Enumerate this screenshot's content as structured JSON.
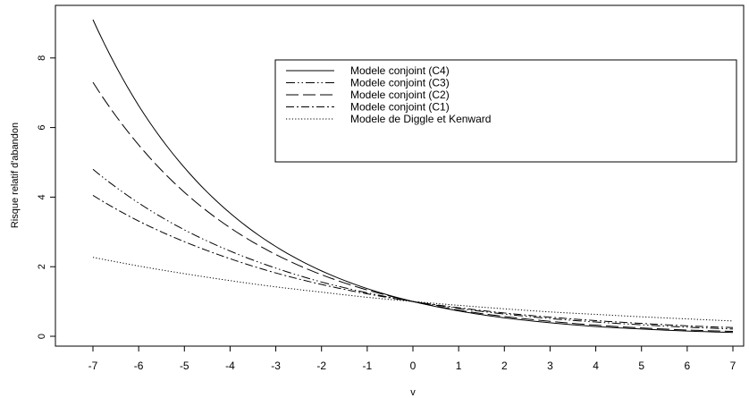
{
  "chart_data": {
    "type": "line",
    "title": "",
    "xlabel": "v",
    "ylabel": "Risque relatif d'abandon",
    "xlim": [
      -7,
      7
    ],
    "ylim": [
      0,
      9.2
    ],
    "x_ticks": [
      "-7",
      "-6",
      "-5",
      "-4",
      "-3",
      "-2",
      "-1",
      "0",
      "1",
      "2",
      "3",
      "4",
      "5",
      "6",
      "7"
    ],
    "y_ticks": [
      "0",
      "2",
      "4",
      "6",
      "8"
    ],
    "legend_position": "top-right",
    "grid": false,
    "x": [
      -7,
      -6,
      -5,
      -4,
      -3,
      -2,
      -1,
      0,
      1,
      2,
      3,
      4,
      5,
      6,
      7
    ],
    "series": [
      {
        "name": "Modele conjoint (C4)",
        "linestyle": "solid",
        "values": [
          9.1,
          6.63,
          4.85,
          3.54,
          2.58,
          1.88,
          1.37,
          1.0,
          0.73,
          0.53,
          0.39,
          0.28,
          0.21,
          0.15,
          0.11
        ]
      },
      {
        "name": "Modele conjoint (C3)",
        "linestyle": "dash-dot-dot",
        "values": [
          4.8,
          3.83,
          3.06,
          2.45,
          1.96,
          1.56,
          1.25,
          1.0,
          0.8,
          0.64,
          0.51,
          0.41,
          0.33,
          0.26,
          0.21
        ]
      },
      {
        "name": "Modele conjoint (C2)",
        "linestyle": "long-dash",
        "values": [
          7.3,
          5.5,
          4.14,
          3.12,
          2.35,
          1.77,
          1.33,
          1.0,
          0.75,
          0.57,
          0.43,
          0.32,
          0.24,
          0.18,
          0.14
        ]
      },
      {
        "name": "Modele conjoint (C1)",
        "linestyle": "dash-dot",
        "values": [
          4.05,
          3.31,
          2.72,
          2.23,
          1.82,
          1.49,
          1.22,
          1.0,
          0.82,
          0.67,
          0.55,
          0.45,
          0.37,
          0.3,
          0.25
        ]
      },
      {
        "name": "Modele de Diggle et Kenward",
        "linestyle": "dotted",
        "values": [
          2.27,
          2.02,
          1.8,
          1.6,
          1.42,
          1.27,
          1.12,
          1.0,
          0.89,
          0.79,
          0.7,
          0.63,
          0.56,
          0.5,
          0.44
        ]
      }
    ]
  }
}
